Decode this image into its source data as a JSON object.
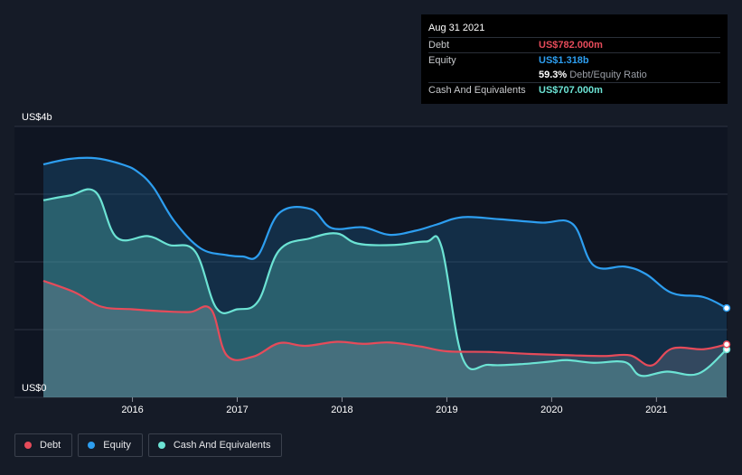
{
  "tooltip": {
    "date": "Aug 31 2021",
    "rows": [
      {
        "label": "Debt",
        "value": "US$782.000m",
        "color": "#e64b5a"
      },
      {
        "label": "Equity",
        "value": "US$1.318b",
        "color": "#2d9ef0"
      },
      {
        "label": "",
        "value": "59.3%",
        "sub": "Debt/Equity Ratio",
        "color": "#ffffff"
      },
      {
        "label": "Cash And Equivalents",
        "value": "US$707.000m",
        "color": "#6ce3d4"
      }
    ]
  },
  "legend": [
    {
      "label": "Debt",
      "color": "#e64b5a"
    },
    {
      "label": "Equity",
      "color": "#2d9ef0"
    },
    {
      "label": "Cash And Equivalents",
      "color": "#6ce3d4"
    }
  ],
  "chart_data": {
    "type": "area",
    "ylabel_top": "US$4b",
    "ylabel_bottom": "US$0",
    "ylim": [
      0,
      4.0
    ],
    "xlim": [
      2015.15,
      2021.67
    ],
    "x_ticks": [
      2016,
      2017,
      2018,
      2019,
      2020,
      2021
    ],
    "x_tick_labels": [
      "2016",
      "2017",
      "2018",
      "2019",
      "2020",
      "2021"
    ],
    "grid": true,
    "series": [
      {
        "name": "Equity",
        "color": "#2d9ef0",
        "points": [
          [
            2015.15,
            3.44
          ],
          [
            2015.4,
            3.52
          ],
          [
            2015.65,
            3.53
          ],
          [
            2015.9,
            3.44
          ],
          [
            2016.05,
            3.33
          ],
          [
            2016.2,
            3.1
          ],
          [
            2016.4,
            2.6
          ],
          [
            2016.65,
            2.2
          ],
          [
            2016.9,
            2.1
          ],
          [
            2017.05,
            2.08
          ],
          [
            2017.2,
            2.1
          ],
          [
            2017.4,
            2.72
          ],
          [
            2017.7,
            2.78
          ],
          [
            2017.9,
            2.5
          ],
          [
            2018.2,
            2.51
          ],
          [
            2018.45,
            2.4
          ],
          [
            2018.7,
            2.46
          ],
          [
            2018.9,
            2.55
          ],
          [
            2019.15,
            2.66
          ],
          [
            2019.5,
            2.63
          ],
          [
            2019.9,
            2.58
          ],
          [
            2020.2,
            2.56
          ],
          [
            2020.4,
            1.95
          ],
          [
            2020.7,
            1.93
          ],
          [
            2020.9,
            1.82
          ],
          [
            2021.15,
            1.54
          ],
          [
            2021.45,
            1.48
          ],
          [
            2021.67,
            1.318
          ]
        ]
      },
      {
        "name": "Cash And Equivalents",
        "color": "#6ce3d4",
        "points": [
          [
            2015.15,
            2.91
          ],
          [
            2015.4,
            2.98
          ],
          [
            2015.65,
            3.03
          ],
          [
            2015.85,
            2.36
          ],
          [
            2016.15,
            2.38
          ],
          [
            2016.35,
            2.25
          ],
          [
            2016.6,
            2.15
          ],
          [
            2016.8,
            1.32
          ],
          [
            2017.0,
            1.3
          ],
          [
            2017.2,
            1.42
          ],
          [
            2017.4,
            2.17
          ],
          [
            2017.7,
            2.35
          ],
          [
            2017.95,
            2.42
          ],
          [
            2018.15,
            2.27
          ],
          [
            2018.5,
            2.25
          ],
          [
            2018.8,
            2.3
          ],
          [
            2018.95,
            2.22
          ],
          [
            2019.15,
            0.58
          ],
          [
            2019.4,
            0.48
          ],
          [
            2019.7,
            0.49
          ],
          [
            2020.0,
            0.53
          ],
          [
            2020.15,
            0.55
          ],
          [
            2020.4,
            0.51
          ],
          [
            2020.7,
            0.52
          ],
          [
            2020.85,
            0.32
          ],
          [
            2021.1,
            0.38
          ],
          [
            2021.4,
            0.35
          ],
          [
            2021.67,
            0.707
          ]
        ]
      },
      {
        "name": "Debt",
        "color": "#e64b5a",
        "points": [
          [
            2015.15,
            1.72
          ],
          [
            2015.45,
            1.55
          ],
          [
            2015.7,
            1.34
          ],
          [
            2016.0,
            1.3
          ],
          [
            2016.3,
            1.27
          ],
          [
            2016.55,
            1.26
          ],
          [
            2016.75,
            1.3
          ],
          [
            2016.9,
            0.62
          ],
          [
            2017.15,
            0.6
          ],
          [
            2017.4,
            0.8
          ],
          [
            2017.65,
            0.76
          ],
          [
            2017.95,
            0.82
          ],
          [
            2018.2,
            0.79
          ],
          [
            2018.45,
            0.81
          ],
          [
            2018.75,
            0.75
          ],
          [
            2019.0,
            0.68
          ],
          [
            2019.4,
            0.67
          ],
          [
            2019.8,
            0.64
          ],
          [
            2020.2,
            0.62
          ],
          [
            2020.5,
            0.61
          ],
          [
            2020.75,
            0.62
          ],
          [
            2020.95,
            0.47
          ],
          [
            2021.15,
            0.72
          ],
          [
            2021.45,
            0.71
          ],
          [
            2021.67,
            0.782
          ]
        ]
      }
    ]
  }
}
